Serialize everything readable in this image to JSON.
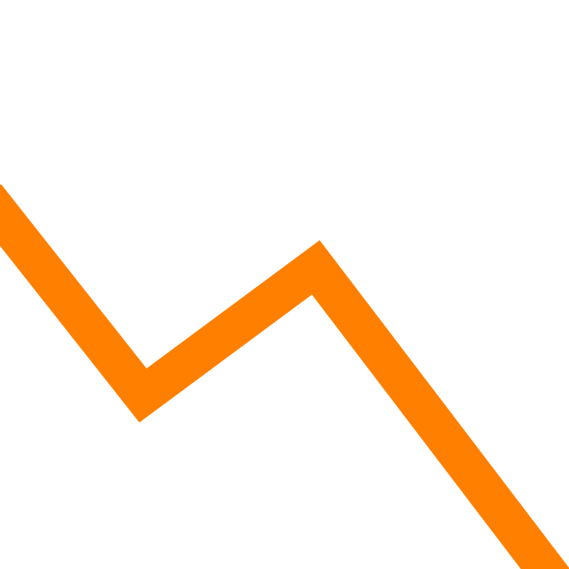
{
  "graphic": {
    "icon": "trend-down-zigzag-icon",
    "stroke_color": "#ff8000",
    "background_color": "#ffffff"
  }
}
